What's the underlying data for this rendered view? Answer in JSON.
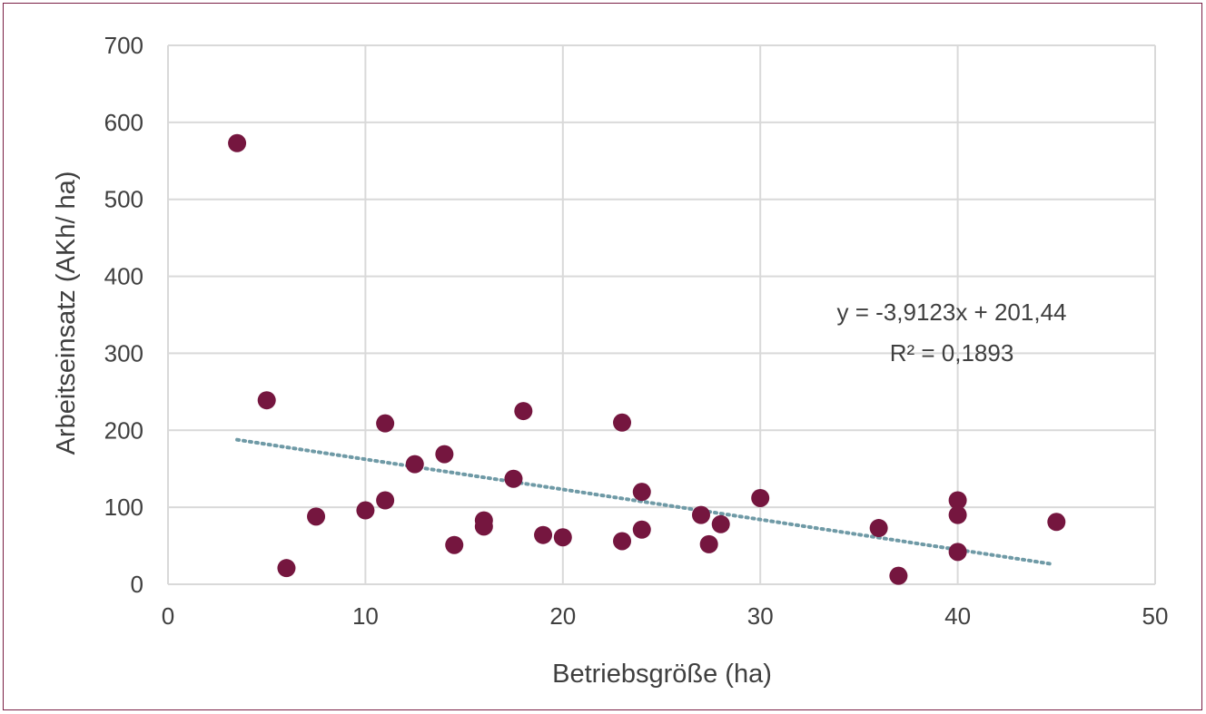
{
  "chart_data": {
    "type": "scatter",
    "xlabel": "Betriebsgröße (ha)",
    "ylabel": "Arbeitseinsatz (AKh/ ha)",
    "xlim": [
      0,
      50
    ],
    "ylim": [
      0,
      700
    ],
    "xticks": [
      0,
      10,
      20,
      30,
      40,
      50
    ],
    "yticks": [
      0,
      100,
      200,
      300,
      400,
      500,
      600,
      700
    ],
    "xtick_labels": [
      "0",
      "10",
      "20",
      "30",
      "40",
      "50"
    ],
    "ytick_labels": [
      "0",
      "100",
      "200",
      "300",
      "400",
      "500",
      "600",
      "700"
    ],
    "grid": true,
    "points": [
      {
        "x": 3.5,
        "y": 573
      },
      {
        "x": 5,
        "y": 239
      },
      {
        "x": 6,
        "y": 21
      },
      {
        "x": 7.5,
        "y": 88
      },
      {
        "x": 10,
        "y": 96
      },
      {
        "x": 11,
        "y": 209
      },
      {
        "x": 11,
        "y": 109
      },
      {
        "x": 12.5,
        "y": 156
      },
      {
        "x": 14,
        "y": 169
      },
      {
        "x": 14.5,
        "y": 51
      },
      {
        "x": 16,
        "y": 83
      },
      {
        "x": 16,
        "y": 75
      },
      {
        "x": 17.5,
        "y": 137
      },
      {
        "x": 18,
        "y": 225
      },
      {
        "x": 19,
        "y": 64
      },
      {
        "x": 20,
        "y": 61
      },
      {
        "x": 23,
        "y": 210
      },
      {
        "x": 23,
        "y": 56
      },
      {
        "x": 24,
        "y": 120
      },
      {
        "x": 24,
        "y": 71
      },
      {
        "x": 27,
        "y": 90
      },
      {
        "x": 27.4,
        "y": 52
      },
      {
        "x": 28,
        "y": 78
      },
      {
        "x": 30,
        "y": 112
      },
      {
        "x": 36,
        "y": 73
      },
      {
        "x": 37,
        "y": 11
      },
      {
        "x": 40,
        "y": 109
      },
      {
        "x": 40,
        "y": 90
      },
      {
        "x": 40,
        "y": 42
      },
      {
        "x": 45,
        "y": 81
      }
    ],
    "trendline": {
      "type": "linear",
      "slope": -3.9123,
      "intercept": 201.44,
      "x_range": [
        3.5,
        44.8
      ],
      "equation_label": "y = -3,9123x + 201,44",
      "r2_label": "R² = 0,1893"
    },
    "colors": {
      "point": "#75163f",
      "trendline": "#6f9aa6",
      "grid": "#d9d9d9",
      "frame": "#7a1f45"
    }
  }
}
